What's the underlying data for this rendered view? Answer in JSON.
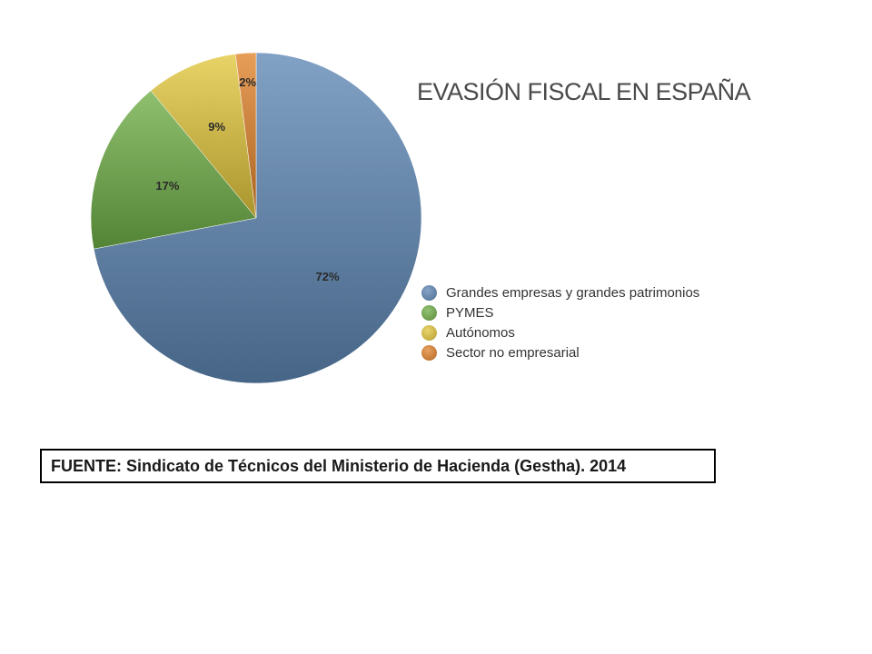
{
  "chart_data": {
    "type": "pie",
    "title": "EVASIÓN FISCAL EN ESPAÑA",
    "slices": [
      {
        "label": "Grandes empresas y grandes patrimonios",
        "value": 72,
        "display": "72%",
        "color": "#5d86b4"
      },
      {
        "label": "PYMES",
        "value": 17,
        "display": "17%",
        "color": "#6fae47"
      },
      {
        "label": "Autónomos",
        "value": 9,
        "display": "9%",
        "color": "#e2c63c"
      },
      {
        "label": "Sector no empresarial",
        "value": 2,
        "display": "2%",
        "color": "#e0822a"
      }
    ],
    "legend_position": "bottom-right"
  },
  "source": {
    "text": "FUENTE: Sindicato de Técnicos del Ministerio de Hacienda (Gestha). 2014"
  }
}
